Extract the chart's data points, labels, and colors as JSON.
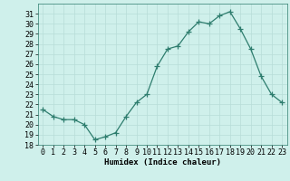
{
  "x": [
    0,
    1,
    2,
    3,
    4,
    5,
    6,
    7,
    8,
    9,
    10,
    11,
    12,
    13,
    14,
    15,
    16,
    17,
    18,
    19,
    20,
    21,
    22,
    23
  ],
  "y": [
    21.5,
    20.8,
    20.5,
    20.5,
    20.0,
    18.5,
    18.8,
    19.2,
    20.8,
    22.2,
    23.0,
    25.8,
    27.5,
    27.8,
    29.2,
    30.2,
    30.0,
    30.8,
    31.2,
    29.5,
    27.5,
    24.8,
    23.0,
    22.2
  ],
  "line_color": "#2e7d6e",
  "marker": "+",
  "marker_size": 4,
  "bg_color": "#cff0eb",
  "grid_color": "#b8ddd8",
  "xlabel": "Humidex (Indice chaleur)",
  "xlim": [
    -0.5,
    23.5
  ],
  "ylim": [
    18,
    32
  ],
  "yticks": [
    18,
    19,
    20,
    21,
    22,
    23,
    24,
    25,
    26,
    27,
    28,
    29,
    30,
    31
  ],
  "xticks": [
    0,
    1,
    2,
    3,
    4,
    5,
    6,
    7,
    8,
    9,
    10,
    11,
    12,
    13,
    14,
    15,
    16,
    17,
    18,
    19,
    20,
    21,
    22,
    23
  ],
  "label_fontsize": 6.5,
  "tick_fontsize": 6.0,
  "line_width": 0.9,
  "marker_edge_width": 0.9
}
